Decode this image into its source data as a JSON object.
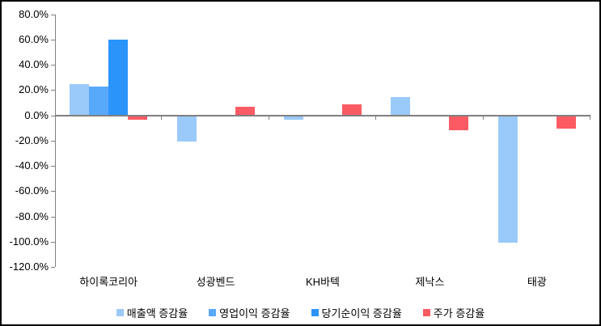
{
  "chart_data": {
    "type": "bar",
    "title": "",
    "xlabel": "",
    "ylabel": "",
    "grid": false,
    "legend_position": "bottom",
    "categories": [
      "하이록코리아",
      "성광벤드",
      "KH바텍",
      "제낙스",
      "태광"
    ],
    "series": [
      {
        "name": "매출액 증감율",
        "color": "#9ACAFA",
        "values": [
          24,
          -20,
          -3,
          14,
          -100
        ]
      },
      {
        "name": "영업이익 증감율",
        "color": "#59A9FB",
        "values": [
          22,
          0,
          0,
          0,
          0
        ]
      },
      {
        "name": "당기순이익 증감율",
        "color": "#2A94FB",
        "values": [
          59,
          0,
          0,
          0,
          0
        ]
      },
      {
        "name": "주가 증감율",
        "color": "#FC5B63",
        "values": [
          -3,
          6,
          8,
          -11,
          -10
        ]
      }
    ],
    "ylim": [
      -120,
      80
    ],
    "ytick_step": 20,
    "yticks": [
      80,
      60,
      40,
      20,
      0,
      -20,
      -40,
      -60,
      -80,
      -100,
      -120
    ],
    "ytick_labels": [
      "80.0%",
      "60.0%",
      "40.0%",
      "20.0%",
      "0.0%",
      "-20.0%",
      "-40.0%",
      "-60.0%",
      "-80.0%",
      "-100.0%",
      "-120.0%"
    ],
    "axis_color": "#808080",
    "text_color": "#000000"
  }
}
